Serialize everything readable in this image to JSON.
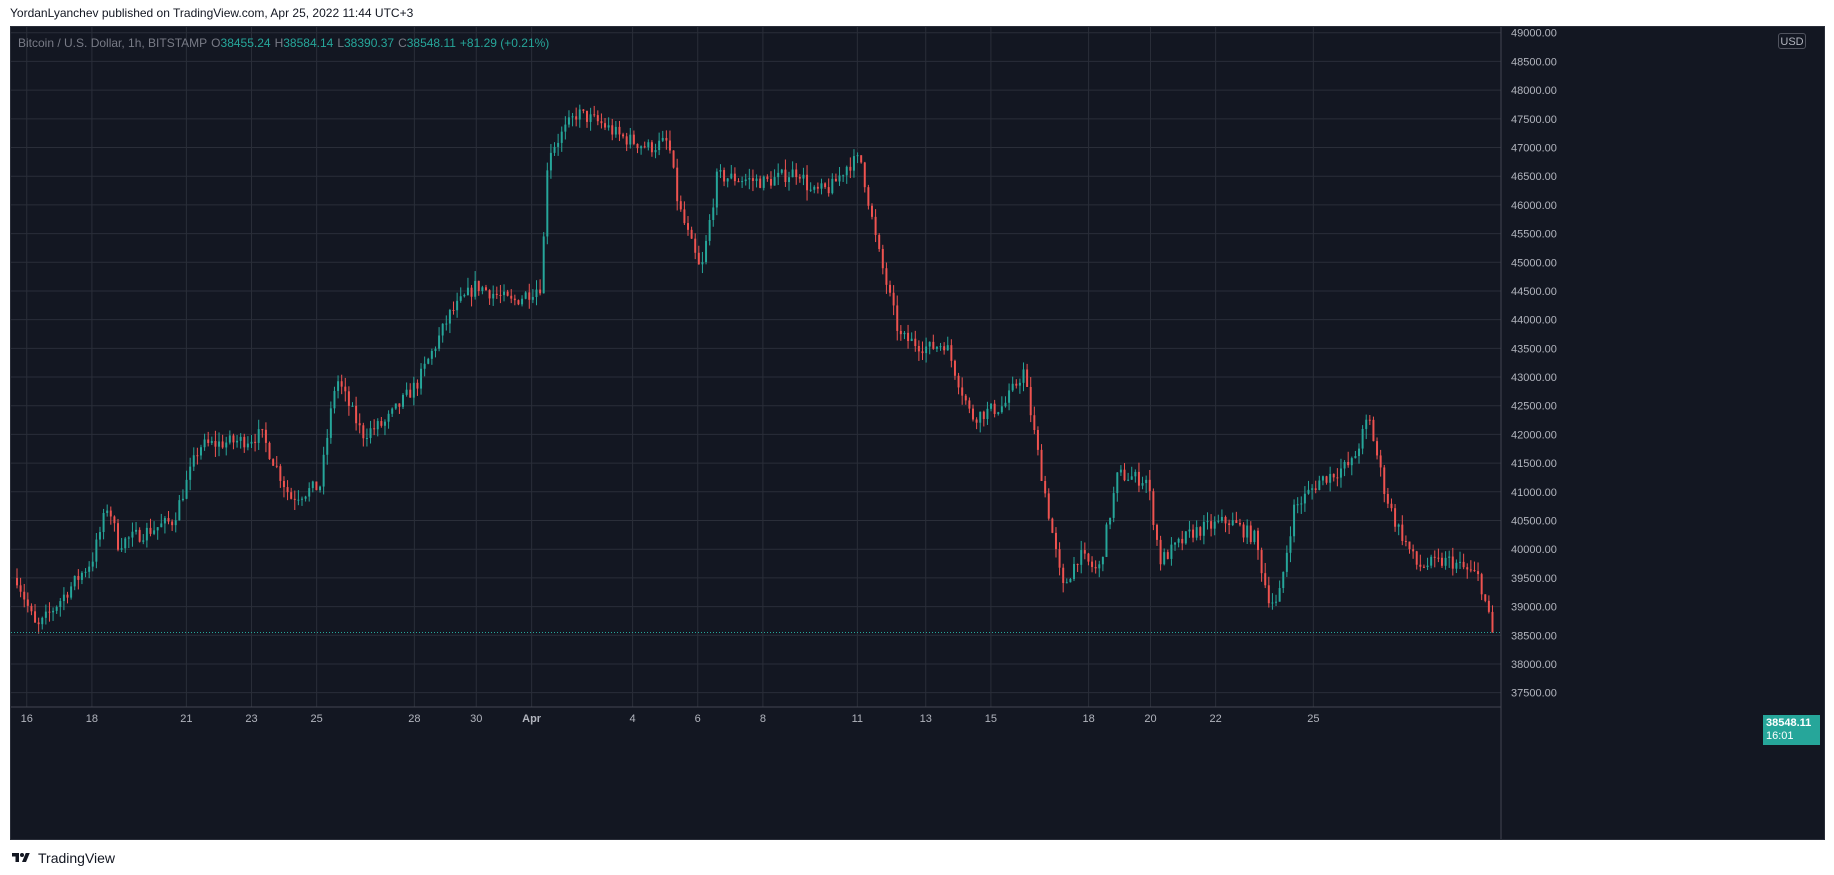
{
  "header": {
    "published_text": "YordanLyanchev published on TradingView.com, Apr 25, 2022 11:44 UTC+3"
  },
  "legend": {
    "symbol": "Bitcoin / U.S. Dollar, 1h, BITSTAMP",
    "o_label": "O",
    "o_value": "38455.24",
    "h_label": "H",
    "h_value": "38584.14",
    "l_label": "L",
    "l_value": "38390.37",
    "c_label": "C",
    "c_value": "38548.11",
    "change": "+81.29 (+0.21%)"
  },
  "currency": "USD",
  "last_price": {
    "value": "38548.11",
    "countdown": "16:01"
  },
  "footer": {
    "brand": "TradingView",
    "logo_icon": "tradingview-logo-icon"
  },
  "colors": {
    "background": "#131722",
    "grid": "#2a2e39",
    "up": "#26a69a",
    "down": "#ef5350",
    "axis_text": "#b2b5be"
  },
  "chart_data": {
    "type": "candlestick",
    "title": "Bitcoin / U.S. Dollar, 1h, BITSTAMP",
    "x_tick_labels": [
      "16",
      "18",
      "21",
      "23",
      "25",
      "28",
      "30",
      "Apr",
      "4",
      "6",
      "8",
      "11",
      "13",
      "15",
      "18",
      "20",
      "22",
      "25"
    ],
    "y_tick_labels": [
      "37500.00",
      "38000.00",
      "38500.00",
      "39000.00",
      "39500.00",
      "40000.00",
      "40500.00",
      "41000.00",
      "41500.00",
      "42000.00",
      "42500.00",
      "43000.00",
      "43500.00",
      "44000.00",
      "44500.00",
      "45000.00",
      "45500.00",
      "46000.00",
      "46500.00",
      "47000.00",
      "47500.00",
      "48000.00",
      "48500.00",
      "49000.00"
    ],
    "ylim": [
      37250,
      49100
    ],
    "grid": true,
    "price_path_anchors": [
      {
        "x": 0,
        "y": 39500
      },
      {
        "x": 0.6,
        "y": 38600
      },
      {
        "x": 2.3,
        "y": 39800
      },
      {
        "x": 2.8,
        "y": 40800
      },
      {
        "x": 3.1,
        "y": 40100
      },
      {
        "x": 4.8,
        "y": 40500
      },
      {
        "x": 5.6,
        "y": 41800
      },
      {
        "x": 7,
        "y": 41900
      },
      {
        "x": 7.5,
        "y": 42000
      },
      {
        "x": 8.4,
        "y": 40900
      },
      {
        "x": 9.3,
        "y": 41100
      },
      {
        "x": 9.8,
        "y": 43000
      },
      {
        "x": 10.6,
        "y": 42000
      },
      {
        "x": 11.3,
        "y": 42200
      },
      {
        "x": 12.3,
        "y": 42900
      },
      {
        "x": 13.3,
        "y": 44100
      },
      {
        "x": 14.1,
        "y": 44600
      },
      {
        "x": 15.2,
        "y": 44300
      },
      {
        "x": 16.1,
        "y": 44600
      },
      {
        "x": 16.3,
        "y": 46900
      },
      {
        "x": 17.2,
        "y": 47600
      },
      {
        "x": 18,
        "y": 47400
      },
      {
        "x": 18.5,
        "y": 47200
      },
      {
        "x": 19.4,
        "y": 47000
      },
      {
        "x": 20,
        "y": 47100
      },
      {
        "x": 20.3,
        "y": 46000
      },
      {
        "x": 21,
        "y": 44800
      },
      {
        "x": 21.5,
        "y": 46500
      },
      {
        "x": 23,
        "y": 46400
      },
      {
        "x": 24,
        "y": 46600
      },
      {
        "x": 24.4,
        "y": 46200
      },
      {
        "x": 25,
        "y": 46300
      },
      {
        "x": 25.5,
        "y": 46700
      },
      {
        "x": 25.9,
        "y": 46800
      },
      {
        "x": 26.4,
        "y": 45300
      },
      {
        "x": 27.1,
        "y": 43700
      },
      {
        "x": 28,
        "y": 43500
      },
      {
        "x": 28.5,
        "y": 43600
      },
      {
        "x": 29.3,
        "y": 42300
      },
      {
        "x": 30.3,
        "y": 42500
      },
      {
        "x": 30.9,
        "y": 43100
      },
      {
        "x": 31.3,
        "y": 41800
      },
      {
        "x": 32.1,
        "y": 39300
      },
      {
        "x": 32.6,
        "y": 39900
      },
      {
        "x": 33.2,
        "y": 39600
      },
      {
        "x": 33.8,
        "y": 41300
      },
      {
        "x": 34.7,
        "y": 41200
      },
      {
        "x": 35.1,
        "y": 39800
      },
      {
        "x": 36.1,
        "y": 40300
      },
      {
        "x": 37.2,
        "y": 40500
      },
      {
        "x": 38,
        "y": 40200
      },
      {
        "x": 38.4,
        "y": 39200
      },
      {
        "x": 38.7,
        "y": 39000
      },
      {
        "x": 39.2,
        "y": 40700
      },
      {
        "x": 40,
        "y": 41200
      },
      {
        "x": 41,
        "y": 41500
      },
      {
        "x": 41.5,
        "y": 42300
      },
      {
        "x": 42,
        "y": 41000
      },
      {
        "x": 42.3,
        "y": 40500
      },
      {
        "x": 43,
        "y": 39700
      },
      {
        "x": 44,
        "y": 39800
      },
      {
        "x": 44.9,
        "y": 39500
      },
      {
        "x": 45.3,
        "y": 38548.11
      }
    ]
  }
}
